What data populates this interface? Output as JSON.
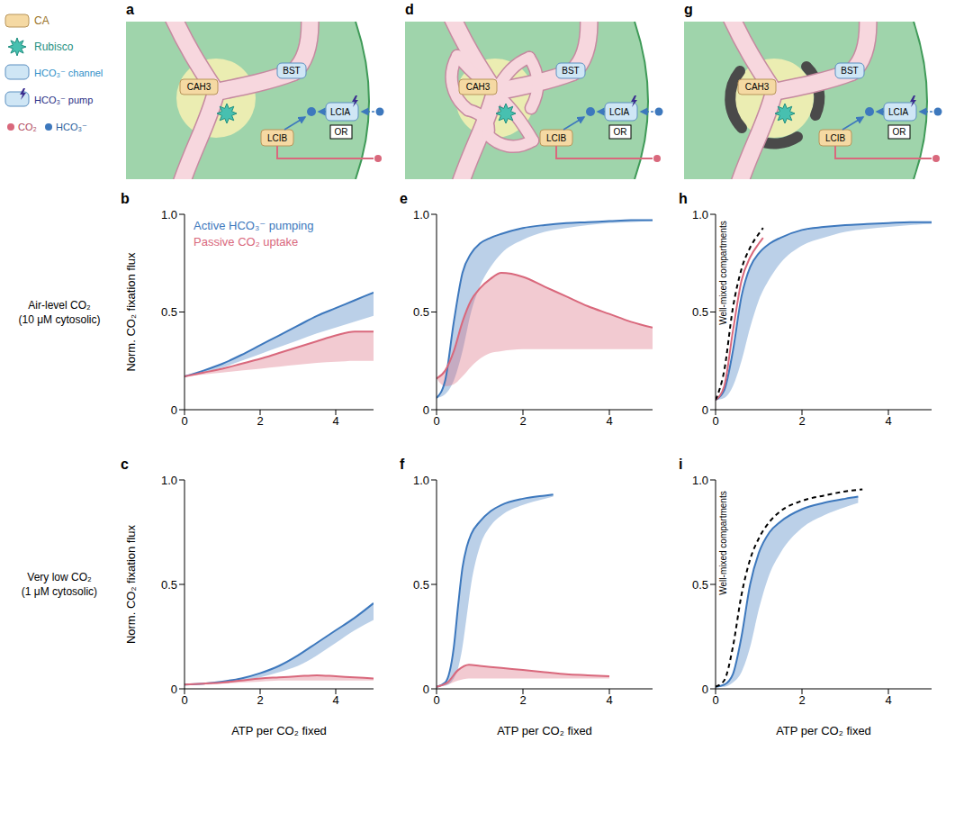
{
  "legend_panel": {
    "items": [
      "CA",
      "Rubisco",
      "HCO₃⁻ channel",
      "HCO₃⁻ pump"
    ],
    "species": [
      "CO₂",
      "HCO₃⁻"
    ]
  },
  "diagrams": [
    {
      "panel": "a",
      "labels": {
        "CA": "CAH3",
        "channel": "BST",
        "pump": "LCIA",
        "CA_stroma": "LCIB",
        "logic": "OR"
      }
    },
    {
      "panel": "d",
      "labels": {
        "CA": "CAH3",
        "channel": "BST",
        "pump": "LCIA",
        "CA_stroma": "LCIB",
        "logic": "OR"
      }
    },
    {
      "panel": "g",
      "labels": {
        "CA": "CAH3",
        "channel": "BST",
        "pump": "LCIA",
        "CA_stroma": "LCIB",
        "logic": "OR"
      }
    }
  ],
  "row_labels": [
    [
      "Air-level CO₂",
      "(10 μM cytosolic)"
    ],
    [
      "Very low CO₂",
      "(1 μM cytosolic)"
    ]
  ],
  "chart_data": [
    {
      "panel": "b",
      "type": "line",
      "ylabel": "Norm. CO₂ fixation flux",
      "xlim": [
        0,
        5
      ],
      "ylim": [
        0,
        1
      ],
      "xticks": [
        0,
        2,
        4
      ],
      "yticks": [
        0,
        0.5,
        {
          "value": 1,
          "label": "1.0"
        }
      ],
      "legend": "upper left",
      "series": [
        {
          "name": "Active HCO₃⁻ pumping",
          "color": "#3d78bd",
          "x": [
            0,
            0.5,
            1,
            1.5,
            2,
            2.5,
            3,
            3.5,
            4,
            4.5,
            5
          ],
          "values": [
            0.17,
            0.2,
            0.235,
            0.28,
            0.33,
            0.38,
            0.43,
            0.48,
            0.52,
            0.56,
            0.6
          ],
          "lower": [
            0.17,
            0.19,
            0.215,
            0.25,
            0.285,
            0.32,
            0.355,
            0.39,
            0.42,
            0.45,
            0.48
          ]
        },
        {
          "name": "Passive CO₂ uptake",
          "color": "#d9687c",
          "x": [
            0,
            0.5,
            1,
            1.5,
            2,
            2.5,
            3,
            3.5,
            4,
            4.5,
            5
          ],
          "values": [
            0.17,
            0.19,
            0.21,
            0.235,
            0.26,
            0.29,
            0.32,
            0.35,
            0.38,
            0.4,
            0.4
          ],
          "lower": [
            0.17,
            0.18,
            0.19,
            0.2,
            0.21,
            0.22,
            0.23,
            0.24,
            0.245,
            0.25,
            0.25
          ]
        }
      ]
    },
    {
      "panel": "c",
      "type": "line",
      "ylabel": "Norm. CO₂ fixation flux",
      "xlabel": "ATP per CO₂ fixed",
      "xlim": [
        0,
        5
      ],
      "ylim": [
        0,
        1
      ],
      "xticks": [
        0,
        2,
        4
      ],
      "yticks": [
        0,
        0.5,
        {
          "value": 1,
          "label": "1.0"
        }
      ],
      "series": [
        {
          "color": "#3d78bd",
          "x": [
            0,
            0.5,
            1,
            1.5,
            2,
            2.5,
            3,
            3.5,
            4,
            4.5,
            5
          ],
          "values": [
            0.02,
            0.025,
            0.035,
            0.05,
            0.075,
            0.11,
            0.16,
            0.22,
            0.28,
            0.34,
            0.41
          ],
          "lower": [
            0.02,
            0.022,
            0.03,
            0.04,
            0.055,
            0.08,
            0.11,
            0.16,
            0.22,
            0.28,
            0.33
          ]
        },
        {
          "color": "#d9687c",
          "x": [
            0,
            0.5,
            1,
            1.5,
            2,
            2.5,
            3,
            3.5,
            4,
            4.5,
            5
          ],
          "values": [
            0.02,
            0.025,
            0.03,
            0.04,
            0.05,
            0.055,
            0.06,
            0.065,
            0.06,
            0.055,
            0.05
          ],
          "lower": [
            0.02,
            0.02,
            0.025,
            0.03,
            0.035,
            0.04,
            0.04,
            0.04,
            0.04,
            0.04,
            0.04
          ]
        }
      ]
    },
    {
      "panel": "e",
      "type": "line",
      "xlim": [
        0,
        5
      ],
      "ylim": [
        0,
        1
      ],
      "xticks": [
        0,
        2,
        4
      ],
      "yticks": [
        0,
        0.5,
        {
          "value": 1,
          "label": "1.0"
        }
      ],
      "series": [
        {
          "color": "#3d78bd",
          "x": [
            0,
            0.2,
            0.4,
            0.6,
            0.8,
            1,
            1.25,
            1.5,
            2,
            2.5,
            3,
            3.5,
            4,
            4.5,
            5
          ],
          "values": [
            0.06,
            0.15,
            0.45,
            0.7,
            0.8,
            0.85,
            0.88,
            0.9,
            0.93,
            0.945,
            0.955,
            0.96,
            0.965,
            0.97,
            0.97
          ],
          "lower": [
            0.06,
            0.08,
            0.15,
            0.3,
            0.5,
            0.63,
            0.73,
            0.8,
            0.87,
            0.91,
            0.93,
            0.945,
            0.955,
            0.96,
            0.965
          ]
        },
        {
          "color": "#d9687c",
          "x": [
            0,
            0.2,
            0.4,
            0.6,
            0.8,
            1,
            1.25,
            1.5,
            2,
            2.5,
            3,
            3.5,
            4,
            4.5,
            5
          ],
          "values": [
            0.16,
            0.2,
            0.3,
            0.45,
            0.56,
            0.62,
            0.67,
            0.7,
            0.68,
            0.63,
            0.58,
            0.53,
            0.49,
            0.45,
            0.42
          ],
          "lower": [
            0.16,
            0.12,
            0.13,
            0.17,
            0.22,
            0.26,
            0.29,
            0.3,
            0.31,
            0.31,
            0.31,
            0.31,
            0.31,
            0.31,
            0.31
          ]
        }
      ]
    },
    {
      "panel": "f",
      "type": "line",
      "xlabel": "ATP per CO₂ fixed",
      "xlim": [
        0,
        5
      ],
      "ylim": [
        0,
        1
      ],
      "xticks": [
        0,
        2,
        4
      ],
      "yticks": [
        0,
        0.5,
        {
          "value": 1,
          "label": "1.0"
        }
      ],
      "series": [
        {
          "color": "#3d78bd",
          "x": [
            0,
            0.2,
            0.4,
            0.5,
            0.6,
            0.7,
            0.8,
            1,
            1.25,
            1.5,
            2,
            2.5,
            2.7
          ],
          "values": [
            0.01,
            0.03,
            0.2,
            0.4,
            0.58,
            0.68,
            0.74,
            0.8,
            0.85,
            0.88,
            0.91,
            0.925,
            0.93
          ],
          "lower": [
            0.01,
            0.015,
            0.05,
            0.1,
            0.2,
            0.35,
            0.5,
            0.68,
            0.78,
            0.83,
            0.88,
            0.91,
            0.92
          ]
        },
        {
          "color": "#d9687c",
          "x": [
            0,
            0.25,
            0.5,
            0.75,
            1,
            1.5,
            2,
            2.5,
            3,
            3.5,
            4
          ],
          "values": [
            0.01,
            0.03,
            0.09,
            0.115,
            0.11,
            0.1,
            0.09,
            0.08,
            0.07,
            0.065,
            0.06
          ],
          "lower": [
            0.01,
            0.02,
            0.04,
            0.05,
            0.05,
            0.05,
            0.05,
            0.05,
            0.05,
            0.05,
            0.05
          ]
        }
      ]
    },
    {
      "panel": "h",
      "type": "line",
      "xlim": [
        0,
        5
      ],
      "ylim": [
        0,
        1
      ],
      "xticks": [
        0,
        2,
        4
      ],
      "yticks": [
        0,
        0.5,
        {
          "value": 1,
          "label": "1.0"
        }
      ],
      "series": [
        {
          "color": "#3d78bd",
          "x": [
            0,
            0.2,
            0.4,
            0.6,
            0.8,
            1,
            1.25,
            1.5,
            2,
            2.5,
            3,
            3.5,
            4,
            4.5,
            5
          ],
          "values": [
            0.05,
            0.1,
            0.3,
            0.58,
            0.73,
            0.8,
            0.85,
            0.88,
            0.92,
            0.935,
            0.945,
            0.95,
            0.955,
            0.96,
            0.96
          ],
          "lower": [
            0.05,
            0.06,
            0.12,
            0.25,
            0.42,
            0.56,
            0.67,
            0.75,
            0.84,
            0.88,
            0.91,
            0.925,
            0.935,
            0.945,
            0.95
          ]
        },
        {
          "color": "#d9687c",
          "x": [
            0,
            0.2,
            0.4,
            0.6,
            0.8,
            1,
            1.1
          ],
          "values": [
            0.05,
            0.12,
            0.4,
            0.66,
            0.78,
            0.85,
            0.88
          ]
        },
        {
          "name": "Well-mixed compartments",
          "color": "#000000",
          "line_style": "dashed",
          "x": [
            0,
            0.2,
            0.4,
            0.6,
            0.8,
            1,
            1.1
          ],
          "values": [
            0.05,
            0.2,
            0.52,
            0.72,
            0.83,
            0.9,
            0.93
          ]
        }
      ]
    },
    {
      "panel": "i",
      "type": "line",
      "xlabel": "ATP per CO₂ fixed",
      "xlim": [
        0,
        5
      ],
      "ylim": [
        0,
        1
      ],
      "xticks": [
        0,
        2,
        4
      ],
      "yticks": [
        0,
        0.5,
        {
          "value": 1,
          "label": "1.0"
        }
      ],
      "series": [
        {
          "color": "#3d78bd",
          "x": [
            0,
            0.2,
            0.4,
            0.6,
            0.8,
            1,
            1.25,
            1.5,
            2,
            2.5,
            3,
            3.3
          ],
          "values": [
            0.01,
            0.02,
            0.07,
            0.25,
            0.5,
            0.65,
            0.75,
            0.8,
            0.86,
            0.89,
            0.91,
            0.92
          ],
          "lower": [
            0.01,
            0.01,
            0.03,
            0.08,
            0.2,
            0.38,
            0.55,
            0.65,
            0.77,
            0.83,
            0.87,
            0.89
          ]
        },
        {
          "name": "Well-mixed compartments",
          "color": "#000000",
          "line_style": "dashed",
          "x": [
            0,
            0.2,
            0.4,
            0.6,
            0.8,
            1,
            1.25,
            1.5,
            2,
            2.5,
            3,
            3.4
          ],
          "values": [
            0.01,
            0.04,
            0.2,
            0.45,
            0.62,
            0.72,
            0.8,
            0.85,
            0.9,
            0.925,
            0.945,
            0.955
          ]
        }
      ]
    }
  ]
}
